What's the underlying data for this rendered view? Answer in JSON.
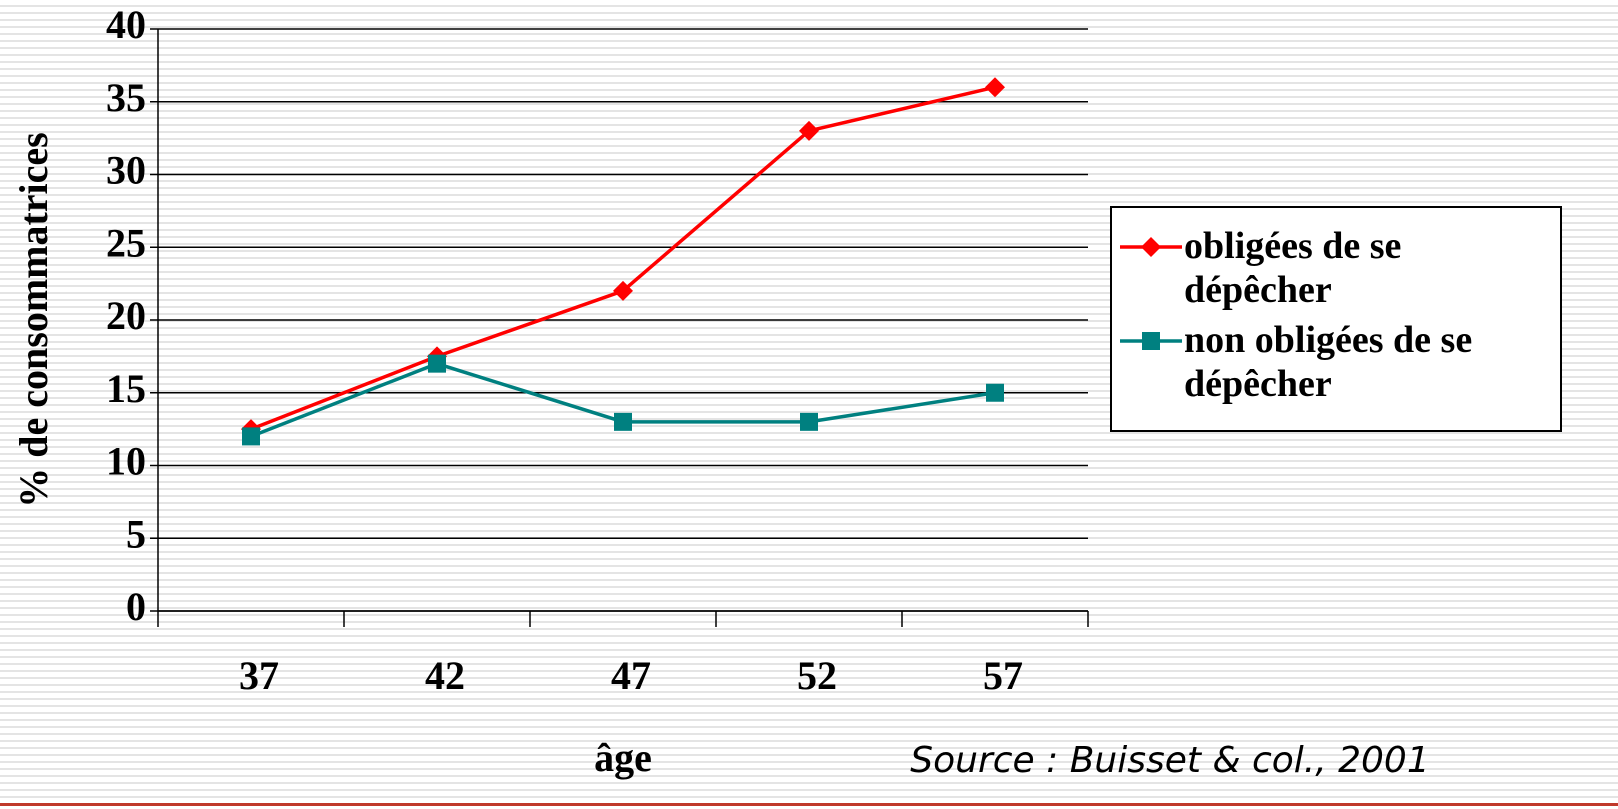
{
  "chart_data": {
    "type": "line",
    "categories": [
      "37",
      "42",
      "47",
      "52",
      "57"
    ],
    "series": [
      {
        "name": "obligées de se dépêcher",
        "color": "#ff0000",
        "marker": "diamond",
        "values": [
          12.5,
          17.5,
          22,
          33,
          36
        ]
      },
      {
        "name": "non obligées de se dépêcher",
        "color": "#008080",
        "marker": "square",
        "values": [
          12,
          17,
          13,
          13,
          15
        ]
      }
    ],
    "ylim": [
      0,
      40
    ],
    "yticks": [
      0,
      5,
      10,
      15,
      20,
      25,
      30,
      35,
      40
    ],
    "grid": true,
    "xlabel": "âge",
    "ylabel": "% de consommatrices",
    "annotation": "Source : Buisset & col., 2001",
    "legend": "right"
  }
}
